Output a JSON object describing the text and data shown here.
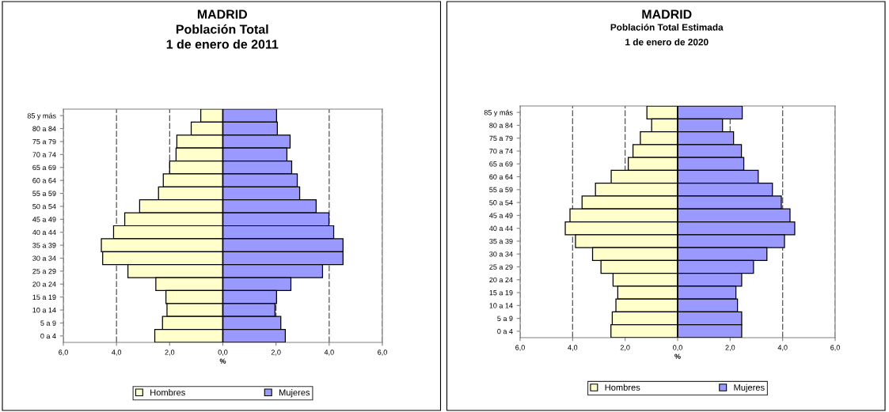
{
  "chart_data": [
    {
      "type": "bar",
      "orientation": "horizontal",
      "title": "MADRID\nPoblación Total\n1 de enero de 2011",
      "xlabel": "%",
      "stacked": true,
      "categories": [
        "85 y más",
        "80 a 84",
        "75 a 79",
        "70 a 74",
        "65 a 69",
        "60 a 64",
        "55 a 59",
        "50 a 54",
        "45 a 49",
        "40 a 44",
        "35 a 39",
        "30 a 34",
        "25 a 29",
        "20 a 24",
        "15 a 19",
        "10 a 14",
        "5 a 9",
        "0 a 4"
      ],
      "series": [
        {
          "name": "Hombres",
          "color": "#ffffcc",
          "values": [
            -0.83,
            -1.19,
            -1.73,
            -1.76,
            -2.0,
            -2.24,
            -2.42,
            -3.13,
            -3.69,
            -4.11,
            -4.57,
            -4.52,
            -3.57,
            -2.52,
            -2.14,
            -2.1,
            -2.27,
            -2.56
          ]
        },
        {
          "name": "Mujeres",
          "color": "#9999ff",
          "values": [
            2.02,
            2.05,
            2.53,
            2.41,
            2.59,
            2.8,
            2.89,
            3.51,
            3.99,
            4.17,
            4.52,
            4.52,
            3.75,
            2.56,
            2.02,
            1.96,
            2.18,
            2.35
          ]
        }
      ],
      "xlim": [
        -6,
        6
      ],
      "xticks": [
        {
          "value": -6,
          "label": "6,0"
        },
        {
          "value": -4,
          "label": "4,0"
        },
        {
          "value": -2,
          "label": "2,0"
        },
        {
          "value": 0,
          "label": "0,0"
        },
        {
          "value": 2,
          "label": "2,0"
        },
        {
          "value": 4,
          "label": "4,0"
        },
        {
          "value": 6,
          "label": "6,0"
        }
      ],
      "grid": "x",
      "legend": "bottom"
    },
    {
      "type": "bar",
      "orientation": "horizontal",
      "title": "MADRID",
      "stacked": true,
      "subtitle": "Población Total Estimada\n1 de enero de 2020",
      "xlabel": "%",
      "categories": [
        "85 y más",
        "80 a 84",
        "75 a 79",
        "70 a 74",
        "65 a 69",
        "60 a 64",
        "55 a 59",
        "50 a 54",
        "45 a 49",
        "40 a 44",
        "35 a 39",
        "30 a 34",
        "25 a 29",
        "20 a 24",
        "15 a 19",
        "10 a 14",
        "5 a 9",
        "0 a 4"
      ],
      "series": [
        {
          "name": "Hombres",
          "color": "#ffffcc",
          "values": [
            -1.17,
            -0.99,
            -1.42,
            -1.7,
            -1.88,
            -2.53,
            -3.13,
            -3.64,
            -4.1,
            -4.28,
            -3.89,
            -3.24,
            -2.92,
            -2.46,
            -2.28,
            -2.35,
            -2.49,
            -2.54
          ]
        },
        {
          "name": "Mujeres",
          "color": "#9999ff",
          "values": [
            2.46,
            1.71,
            2.13,
            2.43,
            2.52,
            3.07,
            3.61,
            3.95,
            4.28,
            4.46,
            4.07,
            3.4,
            2.89,
            2.44,
            2.22,
            2.28,
            2.44,
            2.44
          ]
        }
      ],
      "xlim": [
        -6,
        6
      ],
      "xticks": [
        {
          "value": -6,
          "label": "6,0"
        },
        {
          "value": -4,
          "label": "4,0"
        },
        {
          "value": -2,
          "label": "2,0"
        },
        {
          "value": 0,
          "label": "0,0"
        },
        {
          "value": 2,
          "label": "2,0"
        },
        {
          "value": 4,
          "label": "4,0"
        },
        {
          "value": 6,
          "label": "6,0"
        }
      ],
      "grid": "x",
      "legend": "bottom"
    }
  ]
}
